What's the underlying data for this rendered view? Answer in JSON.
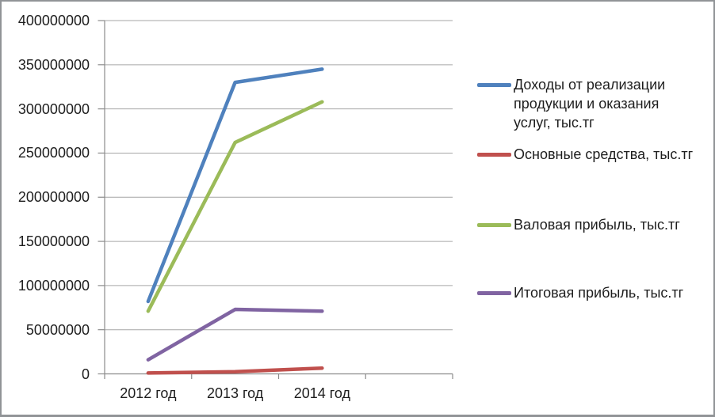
{
  "chart_data": {
    "type": "line",
    "title": "",
    "xlabel": "",
    "ylabel": "",
    "categories": [
      "2012 год",
      "2013 год",
      "2014 год"
    ],
    "series": [
      {
        "name": "Доходы от реализации продукции и оказания услуг, тыс.тг",
        "legend_display": "Доходы от реализации\nпродукции и оказания\nуслуг, тыс.тг",
        "color": "#4F81BD",
        "values": [
          82000000,
          330000000,
          345000000
        ]
      },
      {
        "name": "Основные средства, тыс.тг",
        "legend_display": "Основные средства, тыс.тг",
        "color": "#C0504D",
        "values": [
          1000000,
          2500000,
          6500000
        ]
      },
      {
        "name": "Валовая прибыль, тыс.тг",
        "legend_display": "Валовая прибыль, тыс.тг",
        "color": "#9BBB59",
        "values": [
          71000000,
          262000000,
          308000000
        ]
      },
      {
        "name": "Итоговая прибыль, тыс.тг",
        "legend_display": "Итоговая прибыль, тыс.тг",
        "color": "#8064A2",
        "values": [
          16000000,
          73000000,
          71000000
        ]
      }
    ],
    "ylim": [
      0,
      400000000
    ],
    "ystep": 50000000,
    "y_tick_labels": [
      "0",
      "50000000",
      "100000000",
      "150000000",
      "200000000",
      "250000000",
      "300000000",
      "350000000",
      "400000000"
    ],
    "grid": true,
    "legend_position": "right",
    "colors": {
      "gridline": "#A6A6A6",
      "axis": "#8C8C8C",
      "text": "#1E1E1E",
      "frame_border": "#919497",
      "background": "#FFFFFF"
    }
  }
}
